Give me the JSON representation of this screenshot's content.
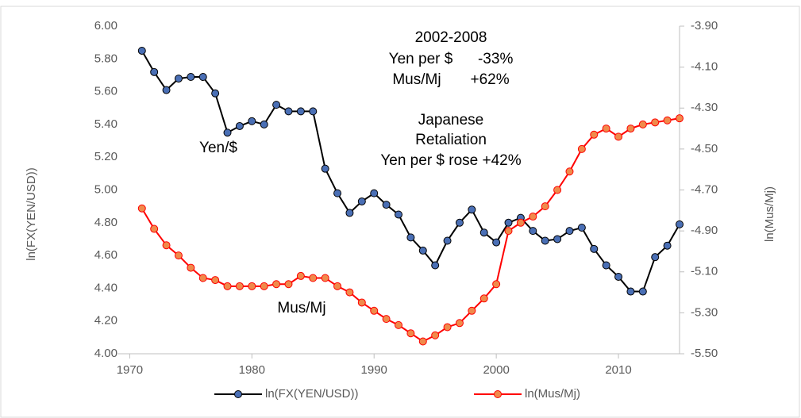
{
  "chart_data": {
    "type": "line",
    "x": [
      1971,
      1972,
      1973,
      1974,
      1975,
      1976,
      1977,
      1978,
      1979,
      1980,
      1981,
      1982,
      1983,
      1984,
      1985,
      1986,
      1987,
      1988,
      1989,
      1990,
      1991,
      1992,
      1993,
      1994,
      1995,
      1996,
      1997,
      1998,
      1999,
      2000,
      2001,
      2002,
      2003,
      2004,
      2005,
      2006,
      2007,
      2008,
      2009,
      2010,
      2011,
      2012,
      2013,
      2014,
      2015
    ],
    "series": [
      {
        "name": "ln(FX(YEN/USD))",
        "color": "#000000",
        "marker_color": "#4a6fb5",
        "values": [
          5.85,
          5.72,
          5.61,
          5.68,
          5.69,
          5.69,
          5.59,
          5.35,
          5.39,
          5.42,
          5.4,
          5.52,
          5.48,
          5.48,
          5.48,
          5.13,
          4.98,
          4.86,
          4.93,
          4.98,
          4.91,
          4.85,
          4.71,
          4.63,
          4.54,
          4.69,
          4.8,
          4.88,
          4.74,
          4.68,
          4.8,
          4.83,
          4.75,
          4.69,
          4.7,
          4.75,
          4.77,
          4.64,
          4.54,
          4.47,
          4.38,
          4.38,
          4.59,
          4.66,
          4.79
        ]
      },
      {
        "name": "ln(Mus/Mj)",
        "color": "#ff0000",
        "marker_color": "#f08a4b",
        "axis": "y2",
        "values": [
          -4.79,
          -4.89,
          -4.97,
          -5.02,
          -5.08,
          -5.13,
          -5.14,
          -5.17,
          -5.17,
          -5.17,
          -5.17,
          -5.16,
          -5.16,
          -5.12,
          -5.13,
          -5.13,
          -5.17,
          -5.2,
          -5.25,
          -5.29,
          -5.33,
          -5.36,
          -5.4,
          -5.44,
          -5.41,
          -5.37,
          -5.35,
          -5.29,
          -5.23,
          -5.16,
          -4.9,
          -4.86,
          -4.83,
          -4.78,
          -4.7,
          -4.61,
          -4.5,
          -4.43,
          -4.4,
          -4.44,
          -4.4,
          -4.38,
          -4.37,
          -4.36,
          -4.35
        ]
      }
    ],
    "xlim": [
      1969,
      2015
    ],
    "xticks": [
      1970,
      1980,
      1990,
      2000,
      2010
    ],
    "ylim": [
      4.0,
      6.0
    ],
    "yticks": [
      {
        "value": 4.0,
        "label": "4.00"
      },
      {
        "value": 4.2,
        "label": "4.20"
      },
      {
        "value": 4.4,
        "label": "4.40"
      },
      {
        "value": 4.6,
        "label": "4.60"
      },
      {
        "value": 4.8,
        "label": "4.80"
      },
      {
        "value": 5.0,
        "label": "5.00"
      },
      {
        "value": 5.2,
        "label": "5.20"
      },
      {
        "value": 5.4,
        "label": "5.40"
      },
      {
        "value": 5.6,
        "label": "5.60"
      },
      {
        "value": 5.8,
        "label": "5.80"
      },
      {
        "value": 6.0,
        "label": "6.00"
      }
    ],
    "y2lim": [
      -5.5,
      -3.9
    ],
    "y2ticks": [
      {
        "value": -5.5,
        "label": "-5.50"
      },
      {
        "value": -5.3,
        "label": "-5.30"
      },
      {
        "value": -5.1,
        "label": "-5.10"
      },
      {
        "value": -4.9,
        "label": "-4.90"
      },
      {
        "value": -4.7,
        "label": "-4.70"
      },
      {
        "value": -4.5,
        "label": "-4.50"
      },
      {
        "value": -4.3,
        "label": "-4.30"
      },
      {
        "value": -4.1,
        "label": "-4.10"
      },
      {
        "value": -3.9,
        "label": "-3.90"
      }
    ],
    "ylabel": "ln(FX(YEN/USD))",
    "y2label": "ln(Mus/Mj)",
    "annotations": [
      "2002-2008",
      "Yen per $      -33%",
      "Mus/Mj       +62%",
      "Japanese",
      "Retaliation",
      "Yen per $ rose +42%",
      "Yen/$",
      "Mus/Mj"
    ],
    "legend": "bottom",
    "grid": false
  }
}
